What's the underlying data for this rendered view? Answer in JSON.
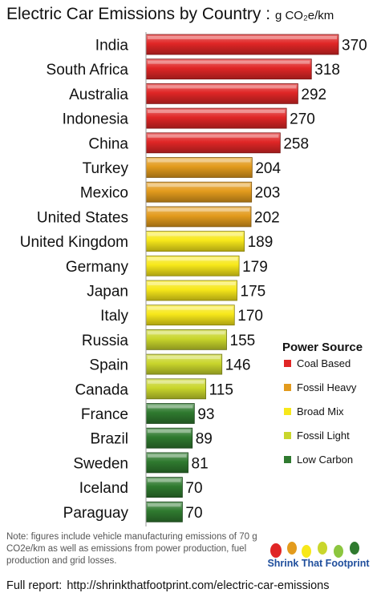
{
  "title": {
    "main": "Electric Car Emissions by Country :",
    "unit": "g CO₂e/km"
  },
  "chart_data": {
    "type": "bar",
    "orientation": "horizontal",
    "categories": [
      "India",
      "South Africa",
      "Australia",
      "Indonesia",
      "China",
      "Turkey",
      "Mexico",
      "United States",
      "United Kingdom",
      "Germany",
      "Japan",
      "Italy",
      "Russia",
      "Spain",
      "Canada",
      "France",
      "Brazil",
      "Sweden",
      "Iceland",
      "Paraguay"
    ],
    "values": [
      370,
      318,
      292,
      270,
      258,
      204,
      203,
      202,
      189,
      179,
      175,
      170,
      155,
      146,
      115,
      93,
      89,
      81,
      70,
      70
    ],
    "groups": [
      "coal",
      "coal",
      "coal",
      "coal",
      "coal",
      "fossil_heavy",
      "fossil_heavy",
      "fossil_heavy",
      "broad",
      "broad",
      "broad",
      "broad",
      "fossil_light",
      "fossil_light",
      "fossil_light",
      "low",
      "low",
      "low",
      "low",
      "low"
    ],
    "xlim": [
      0,
      370
    ],
    "grid": false
  },
  "legend": {
    "title": "Power Source",
    "items": [
      {
        "key": "coal",
        "label": "Coal Based"
      },
      {
        "key": "fossil_heavy",
        "label": "Fossil Heavy"
      },
      {
        "key": "broad",
        "label": "Broad Mix"
      },
      {
        "key": "fossil_light",
        "label": "Fossil Light"
      },
      {
        "key": "low",
        "label": "Low Carbon"
      }
    ]
  },
  "colors": {
    "coal": "#e02626",
    "fossil_heavy": "#e39b1d",
    "broad": "#f7e81a",
    "fossil_light": "#c9d62c",
    "low": "#2f7a2f"
  },
  "note": "Note:  figures include vehicle manufacturing emissions of 70 g CO2e/km as well as emissions from power production, fuel production and grid losses.",
  "brand": "Shrink That Footprint",
  "footer": {
    "label": "Full report:",
    "url": "http://shrinkthatfootprint.com/electric-car-emissions"
  }
}
